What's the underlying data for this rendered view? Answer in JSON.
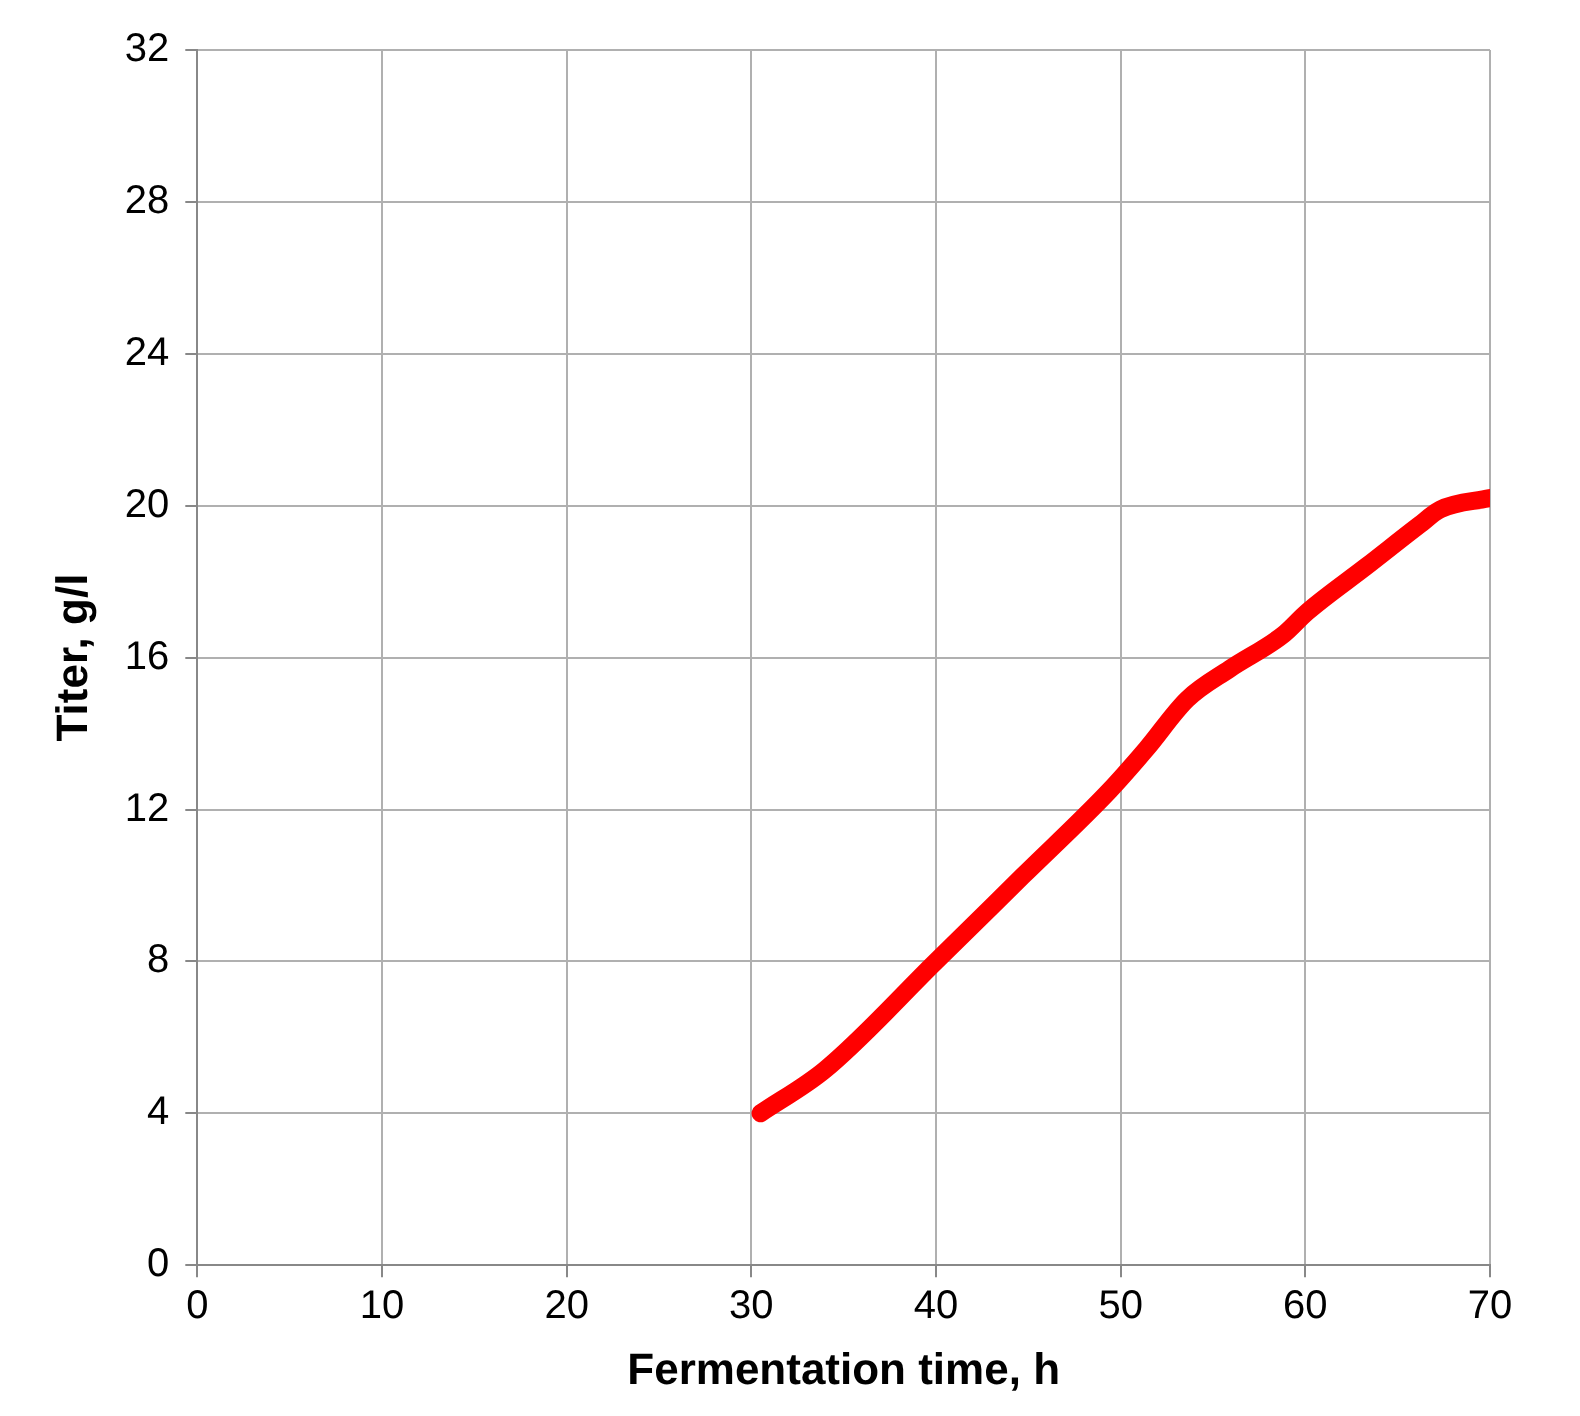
{
  "chart_data": {
    "type": "line",
    "xlabel": "Fermentation time, h",
    "ylabel": "Titer, g/l",
    "series": [
      {
        "color": "#ff0000",
        "x": [
          30.5,
          34,
          40,
          44.7,
          49.4,
          51.4,
          53.6,
          55.9,
          58.8,
          60.1,
          63.3,
          66.2,
          67.3,
          70
        ],
        "values": [
          4,
          5.15,
          8,
          10.25,
          12.5,
          13.6,
          14.9,
          15.7,
          16.6,
          17.2,
          18.4,
          19.5,
          19.9,
          20.2
        ]
      }
    ],
    "xlim": [
      0,
      70
    ],
    "xticks": [
      0,
      10,
      20,
      30,
      40,
      50,
      60,
      70
    ],
    "ylim": [
      0,
      32
    ],
    "yticks": [
      0,
      4,
      8,
      12,
      16,
      20,
      24,
      28,
      32
    ],
    "grid": true,
    "legend": false,
    "marker": "none",
    "line_style": "solid"
  }
}
